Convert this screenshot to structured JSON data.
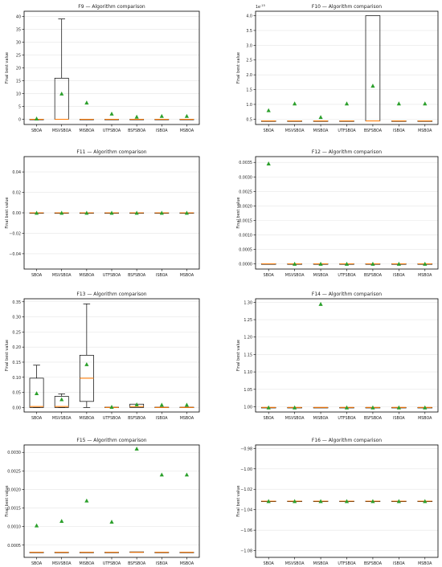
{
  "chart_data": [
    {
      "type": "box",
      "title": "F9 — Algorithm comparison",
      "ylabel": "Final best value",
      "xlabel": "",
      "ylim": [
        -2,
        42
      ],
      "yticks": [
        0,
        5,
        10,
        15,
        20,
        25,
        30,
        35,
        40
      ],
      "ytick_labels": [
        "0",
        "5",
        "10",
        "15",
        "20",
        "25",
        "30",
        "35",
        "40"
      ],
      "offset_label": "",
      "categories": [
        "SBOA",
        "MSVSBOA",
        "MISBOA",
        "UTFSBOA",
        "BSFSBOA",
        "ISBOA",
        "MSBOA"
      ],
      "boxes": [
        {
          "q1": 0,
          "median": 0,
          "q3": 0,
          "whislo": 0,
          "whishi": 0,
          "mean": 0.3
        },
        {
          "q1": 0,
          "median": 0,
          "q3": 16,
          "whislo": 0,
          "whishi": 39,
          "mean": 10
        },
        {
          "q1": 0,
          "median": 0,
          "q3": 0,
          "whislo": 0,
          "whishi": 0,
          "mean": 6.5
        },
        {
          "q1": 0,
          "median": 0,
          "q3": 0,
          "whislo": 0,
          "whishi": 0,
          "mean": 2.2
        },
        {
          "q1": 0,
          "median": 0,
          "q3": 0,
          "whislo": 0,
          "whishi": 0,
          "mean": 1.0
        },
        {
          "q1": 0,
          "median": 0,
          "q3": 0,
          "whislo": 0,
          "whishi": 0,
          "mean": 1.3
        },
        {
          "q1": 0,
          "median": 0,
          "q3": 0,
          "whislo": 0,
          "whishi": 0,
          "mean": 1.3
        }
      ]
    },
    {
      "type": "box",
      "title": "F10 — Algorithm comparison",
      "ylabel": "Final best value",
      "xlabel": "",
      "ylim": [
        0.32,
        4.15
      ],
      "yticks": [
        0.5,
        1.0,
        1.5,
        2.0,
        2.5,
        3.0,
        3.5,
        4.0
      ],
      "ytick_labels": [
        "0.5",
        "1.0",
        "1.5",
        "2.0",
        "2.5",
        "3.0",
        "3.5",
        "4.0"
      ],
      "offset_label": "1e-15",
      "categories": [
        "SBOA",
        "MSVSBOA",
        "MISBOA",
        "UTFSBOA",
        "BSFSBOA",
        "ISBOA",
        "MSBOA"
      ],
      "boxes": [
        {
          "q1": 0.44,
          "median": 0.44,
          "q3": 0.44,
          "whislo": 0.44,
          "whishi": 0.44,
          "mean": 0.8
        },
        {
          "q1": 0.44,
          "median": 0.44,
          "q3": 0.44,
          "whislo": 0.44,
          "whishi": 0.44,
          "mean": 1.03
        },
        {
          "q1": 0.44,
          "median": 0.44,
          "q3": 0.44,
          "whislo": 0.44,
          "whishi": 0.44,
          "mean": 0.57
        },
        {
          "q1": 0.44,
          "median": 0.44,
          "q3": 0.44,
          "whislo": 0.44,
          "whishi": 0.44,
          "mean": 1.03
        },
        {
          "q1": 0.44,
          "median": 0.44,
          "q3": 4.0,
          "whislo": 0.44,
          "whishi": 4.0,
          "mean": 1.63
        },
        {
          "q1": 0.44,
          "median": 0.44,
          "q3": 0.44,
          "whislo": 0.44,
          "whishi": 0.44,
          "mean": 1.03
        },
        {
          "q1": 0.44,
          "median": 0.44,
          "q3": 0.44,
          "whislo": 0.44,
          "whishi": 0.44,
          "mean": 1.03
        }
      ]
    },
    {
      "type": "box",
      "title": "F11 — Algorithm comparison",
      "ylabel": "Final best value",
      "xlabel": "",
      "ylim": [
        -0.055,
        0.055
      ],
      "yticks": [
        -0.04,
        -0.02,
        0.0,
        0.02,
        0.04
      ],
      "ytick_labels": [
        "−0.04",
        "−0.02",
        "0.00",
        "0.02",
        "0.04"
      ],
      "offset_label": "",
      "categories": [
        "SBOA",
        "MSVSBOA",
        "MISBOA",
        "UTFSBOA",
        "BSFSBOA",
        "ISBOA",
        "MSBOA"
      ],
      "boxes": [
        {
          "q1": 0,
          "median": 0,
          "q3": 0,
          "whislo": 0,
          "whishi": 0,
          "mean": 0
        },
        {
          "q1": 0,
          "median": 0,
          "q3": 0,
          "whislo": 0,
          "whishi": 0,
          "mean": 0
        },
        {
          "q1": 0,
          "median": 0,
          "q3": 0,
          "whislo": 0,
          "whishi": 0,
          "mean": 0
        },
        {
          "q1": 0,
          "median": 0,
          "q3": 0,
          "whislo": 0,
          "whishi": 0,
          "mean": 0
        },
        {
          "q1": 0,
          "median": 0,
          "q3": 0,
          "whislo": 0,
          "whishi": 0,
          "mean": 0
        },
        {
          "q1": 0,
          "median": 0,
          "q3": 0,
          "whislo": 0,
          "whishi": 0,
          "mean": 0
        },
        {
          "q1": 0,
          "median": 0,
          "q3": 0,
          "whislo": 0,
          "whishi": 0,
          "mean": 0
        }
      ]
    },
    {
      "type": "box",
      "title": "F12 — Algorithm comparison",
      "ylabel": "Final best value",
      "xlabel": "",
      "ylim": [
        -0.00018,
        0.0037
      ],
      "yticks": [
        0.0,
        0.0005,
        0.001,
        0.0015,
        0.002,
        0.0025,
        0.003,
        0.0035
      ],
      "ytick_labels": [
        "0.0000",
        "0.0005",
        "0.0010",
        "0.0015",
        "0.0020",
        "0.0025",
        "0.0030",
        "0.0035"
      ],
      "offset_label": "",
      "categories": [
        "SBOA",
        "MSVSBOA",
        "MISBOA",
        "UTFSBOA",
        "BSFSBOA",
        "ISBOA",
        "MSBOA"
      ],
      "boxes": [
        {
          "q1": 0,
          "median": 0,
          "q3": 0,
          "whislo": 0,
          "whishi": 0,
          "mean": 0.00346
        },
        {
          "q1": 0,
          "median": 0,
          "q3": 0,
          "whislo": 0,
          "whishi": 0,
          "mean": 0
        },
        {
          "q1": 0,
          "median": 0,
          "q3": 0,
          "whislo": 0,
          "whishi": 0,
          "mean": 0
        },
        {
          "q1": 0,
          "median": 0,
          "q3": 0,
          "whislo": 0,
          "whishi": 0,
          "mean": 0
        },
        {
          "q1": 0,
          "median": 0,
          "q3": 0,
          "whislo": 0,
          "whishi": 0,
          "mean": 0
        },
        {
          "q1": 0,
          "median": 0,
          "q3": 0,
          "whislo": 0,
          "whishi": 0,
          "mean": 0
        },
        {
          "q1": 0,
          "median": 0,
          "q3": 0,
          "whislo": 0,
          "whishi": 0,
          "mean": 0
        }
      ]
    },
    {
      "type": "box",
      "title": "F13 — Algorithm comparison",
      "ylabel": "Final best value",
      "xlabel": "",
      "ylim": [
        -0.015,
        0.36
      ],
      "yticks": [
        0.0,
        0.05,
        0.1,
        0.15,
        0.2,
        0.25,
        0.3,
        0.35
      ],
      "ytick_labels": [
        "0.00",
        "0.05",
        "0.10",
        "0.15",
        "0.20",
        "0.25",
        "0.30",
        "0.35"
      ],
      "offset_label": "",
      "categories": [
        "SBOA",
        "MSVSBOA",
        "MISBOA",
        "UTFSBOA",
        "BSFSBOA",
        "ISBOA",
        "MSBOA"
      ],
      "boxes": [
        {
          "q1": 0,
          "median": 0.003,
          "q3": 0.097,
          "whislo": 0,
          "whishi": 0.14,
          "mean": 0.047
        },
        {
          "q1": 0,
          "median": 0.003,
          "q3": 0.037,
          "whislo": 0,
          "whishi": 0.045,
          "mean": 0.027
        },
        {
          "q1": 0.02,
          "median": 0.097,
          "q3": 0.173,
          "whislo": 0,
          "whishi": 0.343,
          "mean": 0.143
        },
        {
          "q1": 0,
          "median": 0.0,
          "q3": 0.001,
          "whislo": 0,
          "whishi": 0.001,
          "mean": 0.002
        },
        {
          "q1": 0,
          "median": 0.003,
          "q3": 0.011,
          "whislo": 0,
          "whishi": 0.011,
          "mean": 0.01
        },
        {
          "q1": 0,
          "median": 0.0,
          "q3": 0.001,
          "whislo": 0,
          "whishi": 0.001,
          "mean": 0.009
        },
        {
          "q1": 0,
          "median": 0.0,
          "q3": 0.001,
          "whislo": 0,
          "whishi": 0.001,
          "mean": 0.009
        }
      ]
    },
    {
      "type": "box",
      "title": "F14 — Algorithm comparison",
      "ylabel": "Final best value",
      "xlabel": "",
      "ylim": [
        0.985,
        1.31
      ],
      "yticks": [
        1.0,
        1.05,
        1.1,
        1.15,
        1.2,
        1.25,
        1.3
      ],
      "ytick_labels": [
        "1.00",
        "1.05",
        "1.10",
        "1.15",
        "1.20",
        "1.25",
        "1.30"
      ],
      "offset_label": "",
      "categories": [
        "SBOA",
        "MSVSBOA",
        "MISBOA",
        "UTFSBOA",
        "BSFSBOA",
        "ISBOA",
        "MSBOA"
      ],
      "boxes": [
        {
          "q1": 0.998,
          "median": 0.998,
          "q3": 0.998,
          "whislo": 0.998,
          "whishi": 0.998,
          "mean": 0.998
        },
        {
          "q1": 0.998,
          "median": 0.998,
          "q3": 0.998,
          "whislo": 0.998,
          "whishi": 0.998,
          "mean": 0.998
        },
        {
          "q1": 0.998,
          "median": 0.998,
          "q3": 0.998,
          "whislo": 0.998,
          "whishi": 0.998,
          "mean": 1.295
        },
        {
          "q1": 0.998,
          "median": 0.998,
          "q3": 0.998,
          "whislo": 0.998,
          "whishi": 0.998,
          "mean": 0.998
        },
        {
          "q1": 0.998,
          "median": 0.998,
          "q3": 0.998,
          "whislo": 0.998,
          "whishi": 0.998,
          "mean": 0.998
        },
        {
          "q1": 0.998,
          "median": 0.998,
          "q3": 0.998,
          "whislo": 0.998,
          "whishi": 0.998,
          "mean": 0.998
        },
        {
          "q1": 0.998,
          "median": 0.998,
          "q3": 0.998,
          "whislo": 0.998,
          "whishi": 0.998,
          "mean": 0.998
        }
      ]
    },
    {
      "type": "box",
      "title": "F15 — Algorithm comparison",
      "ylabel": "Final best value",
      "xlabel": "",
      "ylim": [
        0.00017,
        0.0032
      ],
      "yticks": [
        0.0005,
        0.001,
        0.0015,
        0.002,
        0.0025,
        0.003
      ],
      "ytick_labels": [
        "0.0005",
        "0.0010",
        "0.0015",
        "0.0020",
        "0.0025",
        "0.0030"
      ],
      "offset_label": "",
      "categories": [
        "SBOA",
        "MSVSBOA",
        "MISBOA",
        "UTFSBOA",
        "BSFSBOA",
        "ISBOA",
        "MSBOA"
      ],
      "boxes": [
        {
          "q1": 0.000307,
          "median": 0.000307,
          "q3": 0.000307,
          "whislo": 0.000307,
          "whishi": 0.000307,
          "mean": 0.00103
        },
        {
          "q1": 0.000307,
          "median": 0.000307,
          "q3": 0.000307,
          "whislo": 0.000307,
          "whishi": 0.000307,
          "mean": 0.00115
        },
        {
          "q1": 0.000307,
          "median": 0.000307,
          "q3": 0.000307,
          "whislo": 0.000307,
          "whishi": 0.000307,
          "mean": 0.0017
        },
        {
          "q1": 0.000307,
          "median": 0.000307,
          "q3": 0.000307,
          "whislo": 0.000307,
          "whishi": 0.000307,
          "mean": 0.00113
        },
        {
          "q1": 0.000307,
          "median": 0.000307,
          "q3": 0.000318,
          "whislo": 0.000307,
          "whishi": 0.000318,
          "mean": 0.0031
        },
        {
          "q1": 0.000307,
          "median": 0.000307,
          "q3": 0.000307,
          "whislo": 0.000307,
          "whishi": 0.000307,
          "mean": 0.0024
        },
        {
          "q1": 0.000307,
          "median": 0.000307,
          "q3": 0.000307,
          "whislo": 0.000307,
          "whishi": 0.000307,
          "mean": 0.0024
        }
      ]
    },
    {
      "type": "box",
      "title": "F16 — Algorithm comparison",
      "ylabel": "Final best value",
      "xlabel": "",
      "ylim": [
        -1.0866,
        -0.9766
      ],
      "yticks": [
        -1.08,
        -1.06,
        -1.04,
        -1.02,
        -1.0,
        -0.98
      ],
      "ytick_labels": [
        "−1.08",
        "−1.06",
        "−1.04",
        "−1.02",
        "−1.00",
        "−0.98"
      ],
      "offset_label": "",
      "categories": [
        "SBOA",
        "MSVSBOA",
        "MISBOA",
        "UTFSBOA",
        "BSFSBOA",
        "ISBOA",
        "MSBOA"
      ],
      "boxes": [
        {
          "q1": -1.0316,
          "median": -1.0316,
          "q3": -1.0316,
          "whislo": -1.0316,
          "whishi": -1.0316,
          "mean": -1.0316
        },
        {
          "q1": -1.0316,
          "median": -1.0316,
          "q3": -1.0316,
          "whislo": -1.0316,
          "whishi": -1.0316,
          "mean": -1.0316
        },
        {
          "q1": -1.0316,
          "median": -1.0316,
          "q3": -1.0316,
          "whislo": -1.0316,
          "whishi": -1.0316,
          "mean": -1.0316
        },
        {
          "q1": -1.0316,
          "median": -1.0316,
          "q3": -1.0316,
          "whislo": -1.0316,
          "whishi": -1.0316,
          "mean": -1.0316
        },
        {
          "q1": -1.0316,
          "median": -1.0316,
          "q3": -1.0316,
          "whislo": -1.0316,
          "whishi": -1.0316,
          "mean": -1.0316
        },
        {
          "q1": -1.0316,
          "median": -1.0316,
          "q3": -1.0316,
          "whislo": -1.0316,
          "whishi": -1.0316,
          "mean": -1.0316
        },
        {
          "q1": -1.0316,
          "median": -1.0316,
          "q3": -1.0316,
          "whislo": -1.0316,
          "whishi": -1.0316,
          "mean": -1.0316
        }
      ]
    }
  ],
  "colors": {
    "median": "#ff7f0e",
    "mean_marker": "#2ca02c",
    "box_edge": "#000000",
    "grid": "#e6e6e6",
    "text": "#222222"
  },
  "marker_shapes": {
    "mean": "triangle-up-icon"
  }
}
